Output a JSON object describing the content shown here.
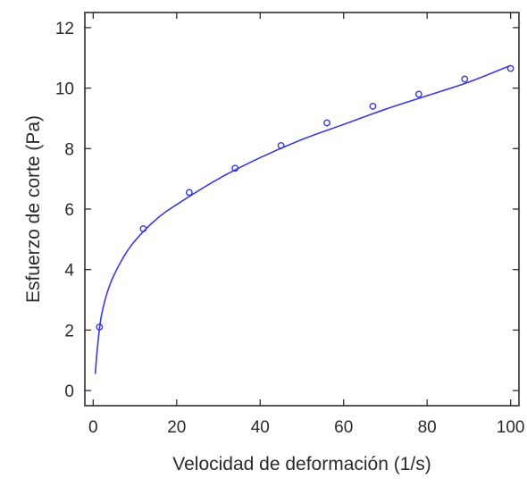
{
  "chart_data": {
    "type": "scatter",
    "title": "",
    "xlabel": "Velocidad de deformación (1/s)",
    "ylabel": "Esfuerzo de corte (Pa)",
    "xlim": [
      -2,
      102
    ],
    "ylim": [
      -0.5,
      12.5
    ],
    "x_ticks": [
      0,
      20,
      40,
      60,
      80,
      100
    ],
    "y_ticks": [
      0,
      2,
      4,
      6,
      8,
      10,
      12
    ],
    "x_tick_labels": [
      "0",
      "20",
      "40",
      "60",
      "80",
      "100"
    ],
    "y_tick_labels": [
      "0",
      "2",
      "4",
      "6",
      "8",
      "10",
      "12"
    ],
    "grid": false,
    "legend": "none",
    "series": [
      {
        "type": "scatter",
        "marker": "open-circle",
        "color": "#3a3ad6",
        "points": [
          {
            "x": 1.5,
            "y": 2.1
          },
          {
            "x": 12,
            "y": 5.35
          },
          {
            "x": 23,
            "y": 6.55
          },
          {
            "x": 34,
            "y": 7.35
          },
          {
            "x": 45,
            "y": 8.1
          },
          {
            "x": 56,
            "y": 8.85
          },
          {
            "x": 67,
            "y": 9.4
          },
          {
            "x": 78,
            "y": 9.8
          },
          {
            "x": 89,
            "y": 10.3
          },
          {
            "x": 100,
            "y": 10.65
          }
        ]
      },
      {
        "type": "line",
        "color": "#3a3ad6",
        "points": [
          {
            "x": 0.5,
            "y": 0.55
          },
          {
            "x": 1,
            "y": 1.4
          },
          {
            "x": 2,
            "y": 2.5
          },
          {
            "x": 4,
            "y": 3.5
          },
          {
            "x": 7,
            "y": 4.35
          },
          {
            "x": 10,
            "y": 4.95
          },
          {
            "x": 15,
            "y": 5.65
          },
          {
            "x": 20,
            "y": 6.15
          },
          {
            "x": 30,
            "y": 7.0
          },
          {
            "x": 40,
            "y": 7.7
          },
          {
            "x": 50,
            "y": 8.3
          },
          {
            "x": 60,
            "y": 8.8
          },
          {
            "x": 70,
            "y": 9.3
          },
          {
            "x": 80,
            "y": 9.75
          },
          {
            "x": 90,
            "y": 10.2
          },
          {
            "x": 100,
            "y": 10.75
          }
        ]
      }
    ]
  }
}
